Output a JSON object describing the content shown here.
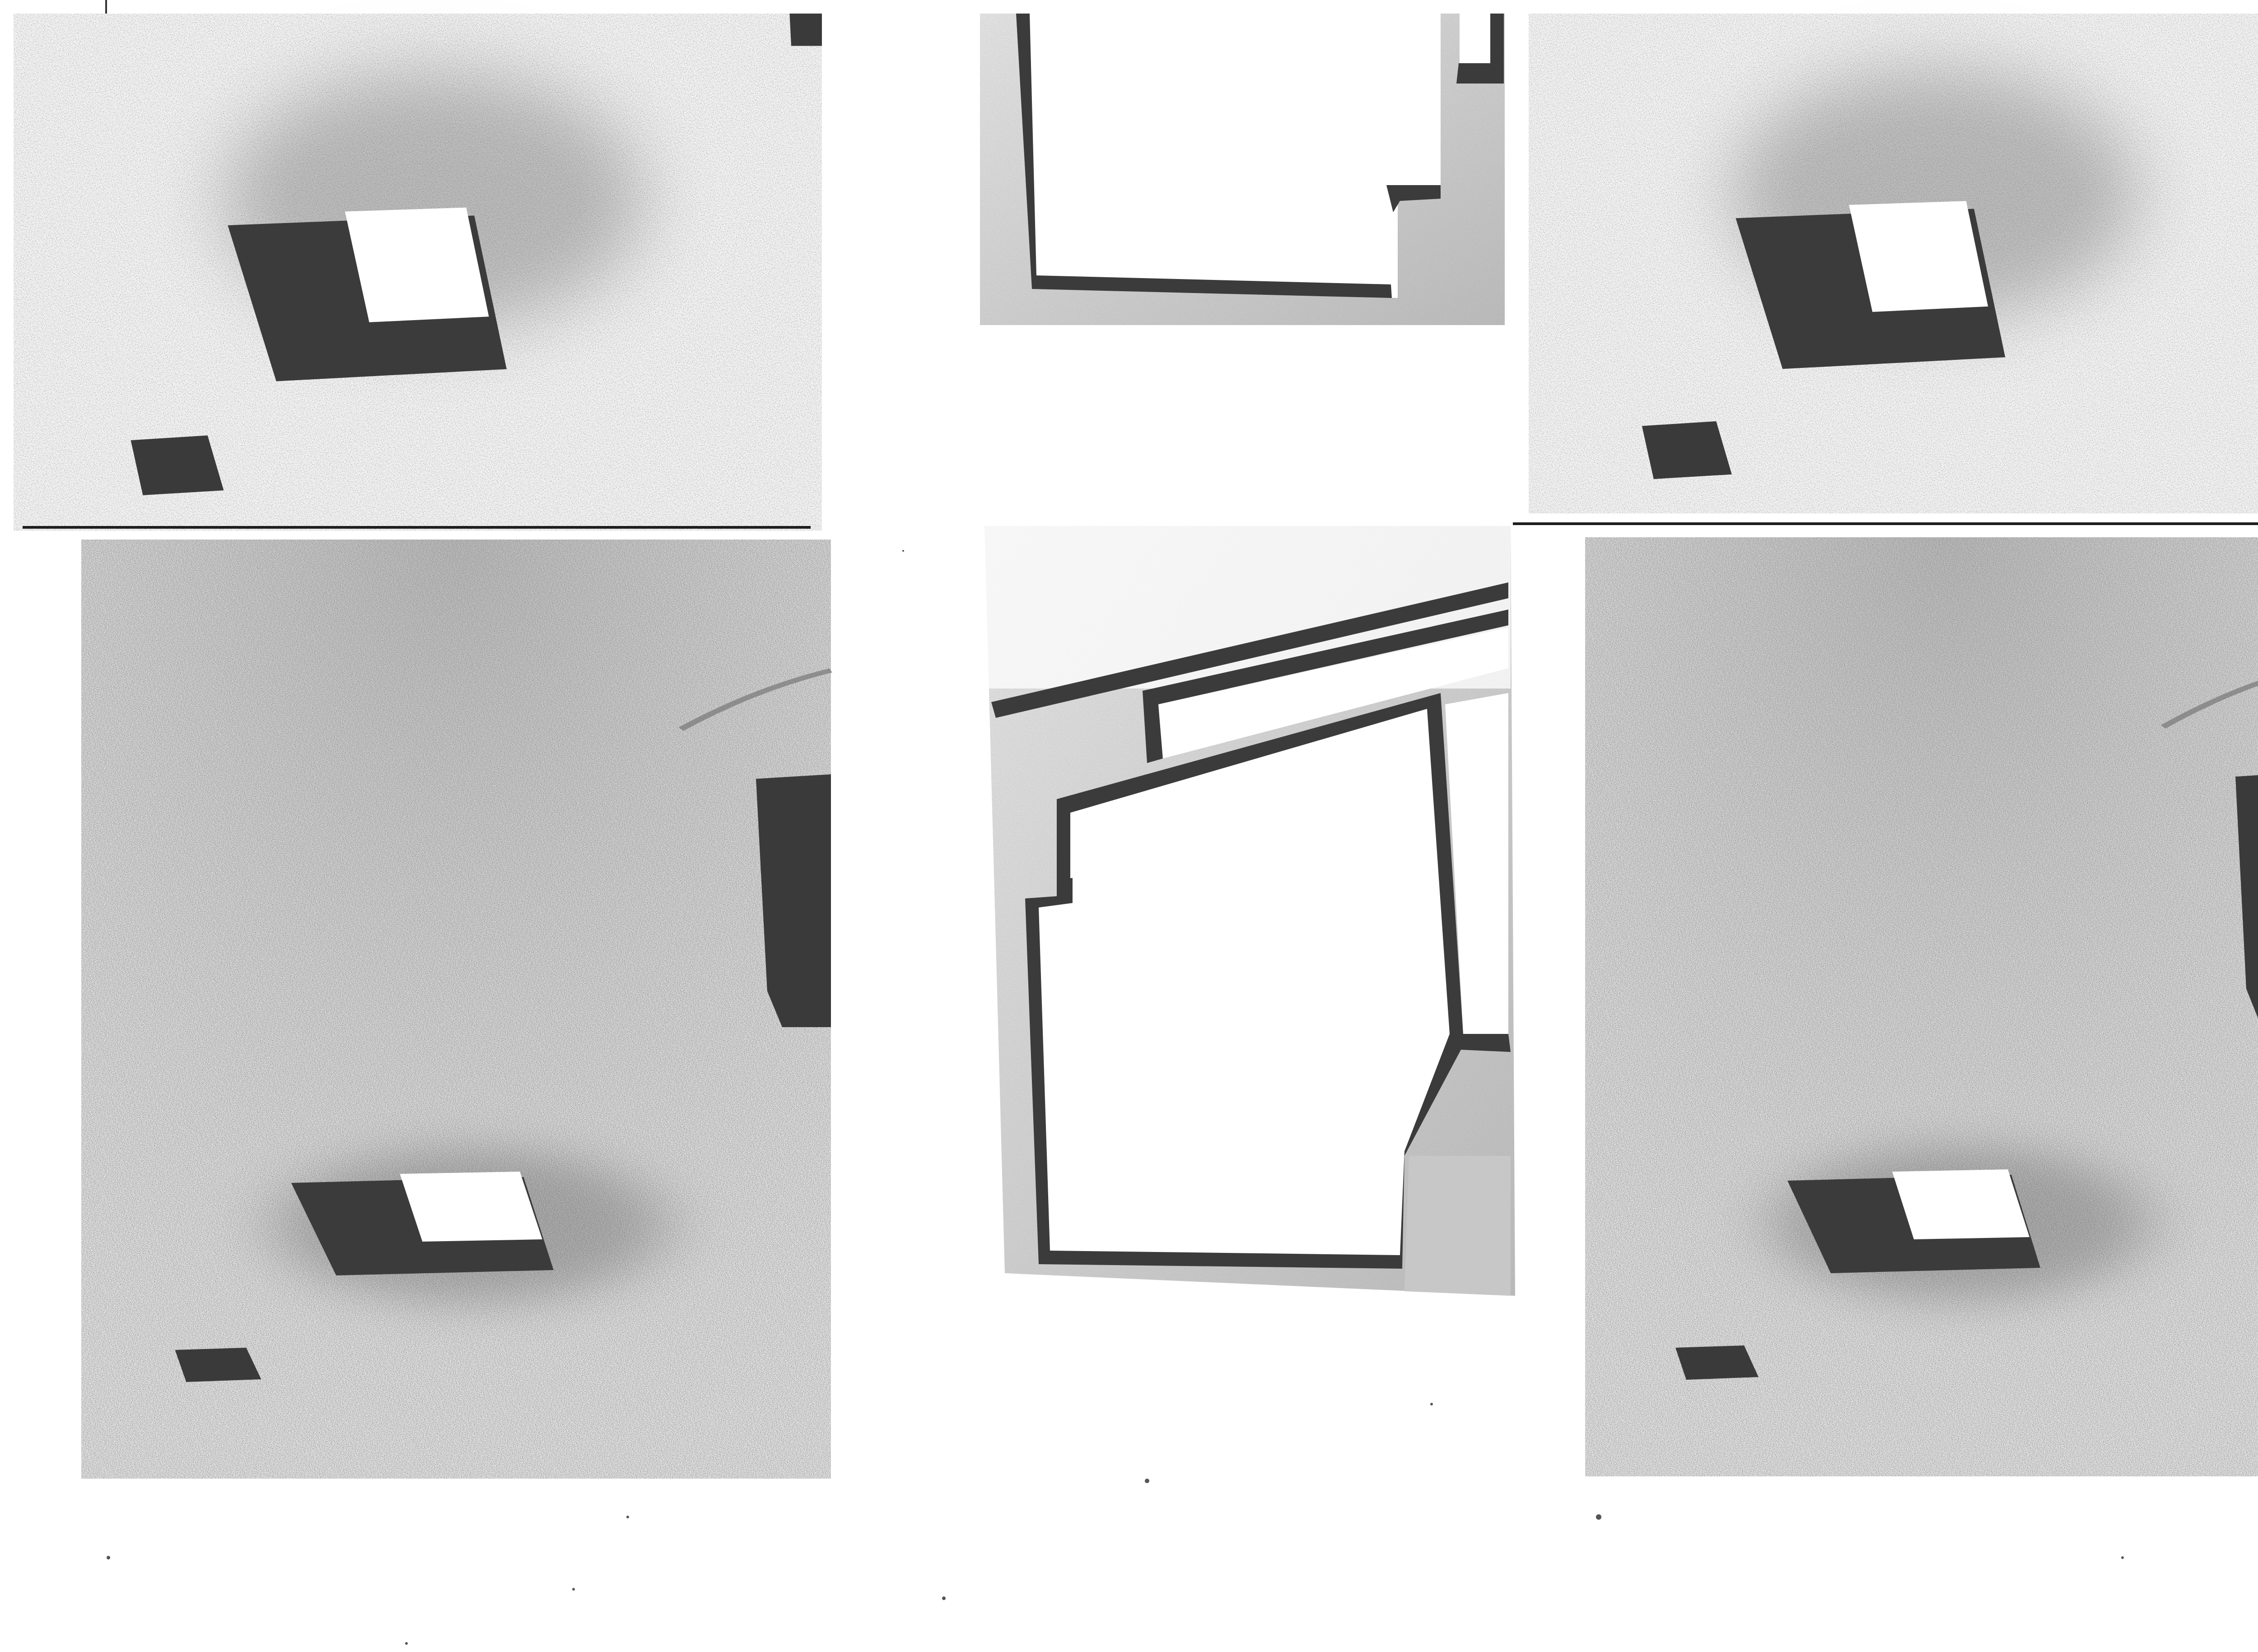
{
  "page": {
    "background": "#ffffff",
    "paper_tone": "#f4f4f4",
    "mid_tone": "#c9c9c9",
    "dark_tone": "#3a3a3a",
    "ink": "#1e1e1e"
  },
  "photos": [
    {
      "name": "photo-top-left",
      "subject": "plaster-fragments-plan"
    },
    {
      "name": "photo-top-center",
      "subject": "frame-model-detail"
    },
    {
      "name": "photo-top-right",
      "subject": "plaster-fragments-plan"
    },
    {
      "name": "photo-bottom-left",
      "subject": "plaster-fragments-plan"
    },
    {
      "name": "photo-bottom-center",
      "subject": "frame-model-detail"
    },
    {
      "name": "photo-bottom-right",
      "subject": "plaster-fragments-plan"
    }
  ]
}
